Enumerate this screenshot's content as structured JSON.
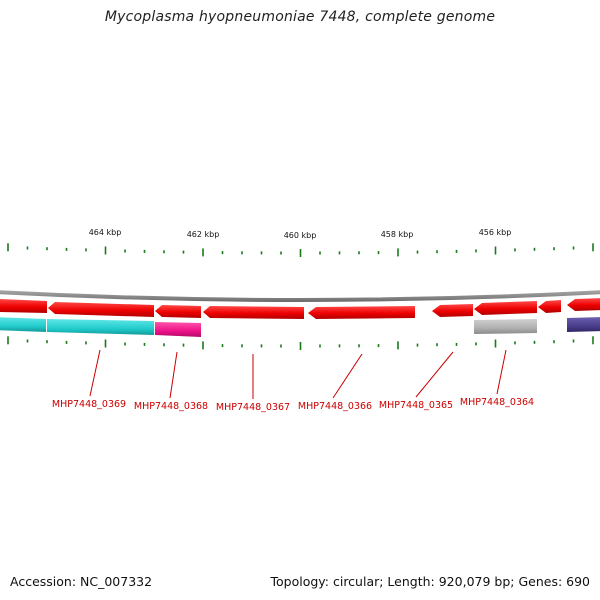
{
  "title": "Mycoplasma hyopneumoniae 7448, complete genome",
  "footer": {
    "accession_label": "Accession: NC_007332",
    "summary_label": "Topology: circular; Length: 920,079 bp; Genes: 690"
  },
  "colors": {
    "backbone": "#8c8c8c",
    "tick": "#1a7a1a",
    "gene_red": "#ee0000",
    "label_red": "#cc0000",
    "cyan": "#22cccc",
    "magenta": "#ee1188",
    "gray": "#b0b0b0",
    "purple": "#4a3f8c"
  },
  "scale": {
    "unit": "kbp",
    "major_labels": [
      "464 kbp",
      "462 kbp",
      "460 kbp",
      "458 kbp",
      "456 kbp"
    ]
  },
  "genes": [
    {
      "locus": "MHP7448_0369"
    },
    {
      "locus": "MHP7448_0368"
    },
    {
      "locus": "MHP7448_0367"
    },
    {
      "locus": "MHP7448_0366"
    },
    {
      "locus": "MHP7448_0365"
    },
    {
      "locus": "MHP7448_0364"
    }
  ]
}
